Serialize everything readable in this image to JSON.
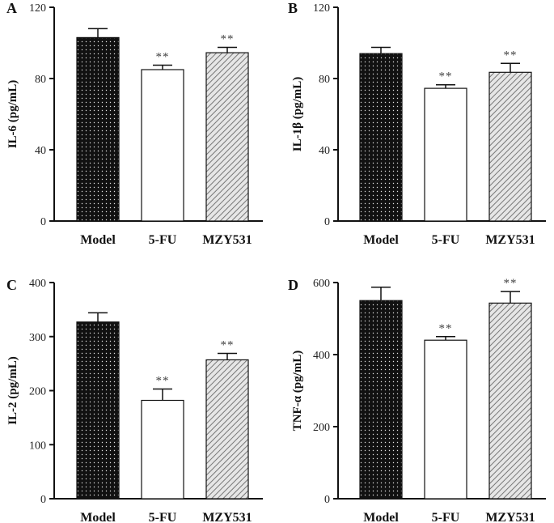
{
  "chart_data": [
    {
      "type": "bar",
      "panel": "A",
      "ylabel": "IL-6 (pg/mL)",
      "categories": [
        "Model",
        "5-FU",
        "MZY531"
      ],
      "values": [
        103,
        85,
        94.5
      ],
      "errors": [
        5,
        2.5,
        3
      ],
      "significance": [
        "",
        "**",
        "**"
      ],
      "ylim": [
        0,
        120
      ],
      "yticks": [
        0,
        40,
        80,
        120
      ]
    },
    {
      "type": "bar",
      "panel": "B",
      "ylabel": "IL-1β (pg/mL)",
      "categories": [
        "Model",
        "5-FU",
        "MZY531"
      ],
      "values": [
        94,
        74.5,
        83.5
      ],
      "errors": [
        3.5,
        2,
        5
      ],
      "significance": [
        "",
        "**",
        "**"
      ],
      "ylim": [
        0,
        120
      ],
      "yticks": [
        0,
        40,
        80,
        120
      ]
    },
    {
      "type": "bar",
      "panel": "C",
      "ylabel": "IL-2 (pg/mL)",
      "categories": [
        "Model",
        "5-FU",
        "MZY531"
      ],
      "values": [
        327,
        182,
        257
      ],
      "errors": [
        17,
        21,
        12
      ],
      "significance": [
        "",
        "**",
        "**"
      ],
      "ylim": [
        0,
        400
      ],
      "yticks": [
        0,
        100,
        200,
        300,
        400
      ]
    },
    {
      "type": "bar",
      "panel": "D",
      "ylabel": "TNF-α (pg/mL)",
      "categories": [
        "Model",
        "5-FU",
        "MZY531"
      ],
      "values": [
        550,
        440,
        543
      ],
      "errors": [
        37,
        10,
        32
      ],
      "significance": [
        "",
        "**",
        "**"
      ],
      "ylim": [
        0,
        600
      ],
      "yticks": [
        0,
        200,
        400,
        600
      ]
    }
  ],
  "colors": {
    "model": "#111111",
    "fu": "#ffffff",
    "mzy": "#d9d9d9",
    "hatch": "#777777",
    "dots": "#dddddd"
  },
  "fills": [
    "dots",
    "white",
    "hatch"
  ]
}
